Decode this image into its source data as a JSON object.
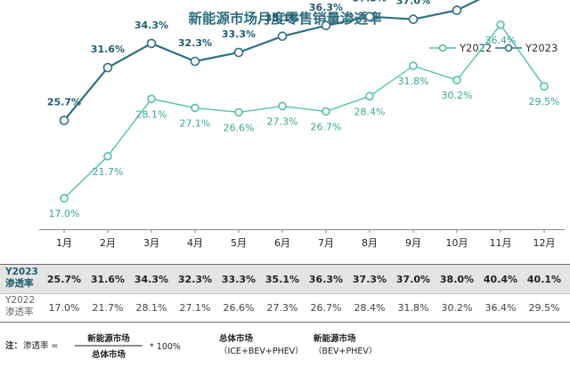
{
  "chart_data": {
    "type": "line",
    "title": "新能源市场月度零售销量渗透率",
    "categories": [
      "1月",
      "2月",
      "3月",
      "4月",
      "5月",
      "6月",
      "7月",
      "8月",
      "9月",
      "10月",
      "11月",
      "12月"
    ],
    "series": [
      {
        "name": "Y2022",
        "values": [
          17.0,
          21.7,
          28.1,
          27.1,
          26.6,
          27.3,
          26.7,
          28.4,
          31.8,
          30.2,
          36.4,
          29.5
        ],
        "labels": [
          "17.0%",
          "21.7%",
          "28.1%",
          "27.1%",
          "26.6%",
          "27.3%",
          "26.7%",
          "28.4%",
          "31.8%",
          "30.2%",
          "36.4%",
          "29.5%"
        ]
      },
      {
        "name": "Y2023",
        "values": [
          25.7,
          31.6,
          34.3,
          32.3,
          33.3,
          35.1,
          36.3,
          37.3,
          37.0,
          38.0,
          40.4,
          40.1
        ],
        "labels": [
          "25.7%",
          "31.6%",
          "34.3%",
          "32.3%",
          "33.3%",
          "35.1%",
          "36.3%",
          "37.3%",
          "37.0%",
          "38.0%",
          "40.4%",
          "40.1%"
        ]
      }
    ],
    "legend_position": "top-right",
    "grid": false,
    "colors": {
      "Y2022": "#52c0aa",
      "Y2023": "#2e6f80",
      "title": "#2e6f80"
    }
  },
  "table": {
    "rows": [
      {
        "header": [
          "Y2023",
          "渗透率"
        ],
        "series": "Y2023"
      },
      {
        "header": [
          "Y2022",
          "渗透率"
        ],
        "series": "Y2022"
      }
    ]
  },
  "note": {
    "prefix": "注：",
    "lhs": "渗透率 =",
    "numerator": "新能源市场",
    "denominator": "总体市场",
    "times": "* 100%",
    "def1": {
      "name": "总体市场",
      "desc": "（ICE+BEV+PHEV）"
    },
    "def2": {
      "name": "新能源市场",
      "desc": "（BEV+PHEV）"
    }
  }
}
